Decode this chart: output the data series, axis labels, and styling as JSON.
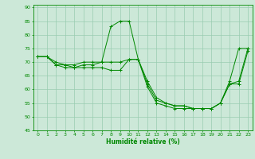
{
  "xlabel": "Humidité relative (%)",
  "xlim": [
    -0.5,
    23.5
  ],
  "ylim": [
    45,
    91
  ],
  "yticks": [
    45,
    50,
    55,
    60,
    65,
    70,
    75,
    80,
    85,
    90
  ],
  "xticks": [
    0,
    1,
    2,
    3,
    4,
    5,
    6,
    7,
    8,
    9,
    10,
    11,
    12,
    13,
    14,
    15,
    16,
    17,
    18,
    19,
    20,
    21,
    22,
    23
  ],
  "bg_color": "#cce8d8",
  "grid_color": "#99ccb0",
  "line_color": "#008800",
  "line1_x": [
    0,
    1,
    2,
    3,
    4,
    5,
    6,
    7,
    8,
    9,
    10,
    11,
    12,
    13,
    14,
    15,
    16,
    17,
    18,
    19,
    20,
    21,
    22,
    23
  ],
  "line1_y": [
    72,
    72,
    69,
    69,
    69,
    70,
    70,
    70,
    83,
    85,
    85,
    71,
    63,
    57,
    55,
    54,
    54,
    53,
    53,
    53,
    55,
    63,
    75,
    75
  ],
  "line2_x": [
    0,
    1,
    2,
    3,
    4,
    5,
    6,
    7,
    8,
    9,
    10,
    11,
    12,
    13,
    14,
    15,
    16,
    17,
    18,
    19,
    20,
    21,
    22,
    23
  ],
  "line2_y": [
    72,
    72,
    70,
    69,
    68,
    69,
    69,
    70,
    70,
    70,
    71,
    71,
    62,
    56,
    55,
    54,
    54,
    53,
    53,
    53,
    55,
    62,
    63,
    75
  ],
  "line3_x": [
    0,
    1,
    2,
    3,
    4,
    5,
    6,
    7,
    8,
    9,
    10,
    11,
    12,
    13,
    14,
    15,
    16,
    17,
    18,
    19,
    20,
    21,
    22,
    23
  ],
  "line3_y": [
    72,
    72,
    69,
    68,
    68,
    68,
    68,
    68,
    67,
    67,
    71,
    71,
    61,
    55,
    54,
    53,
    53,
    53,
    53,
    53,
    55,
    62,
    62,
    74
  ]
}
